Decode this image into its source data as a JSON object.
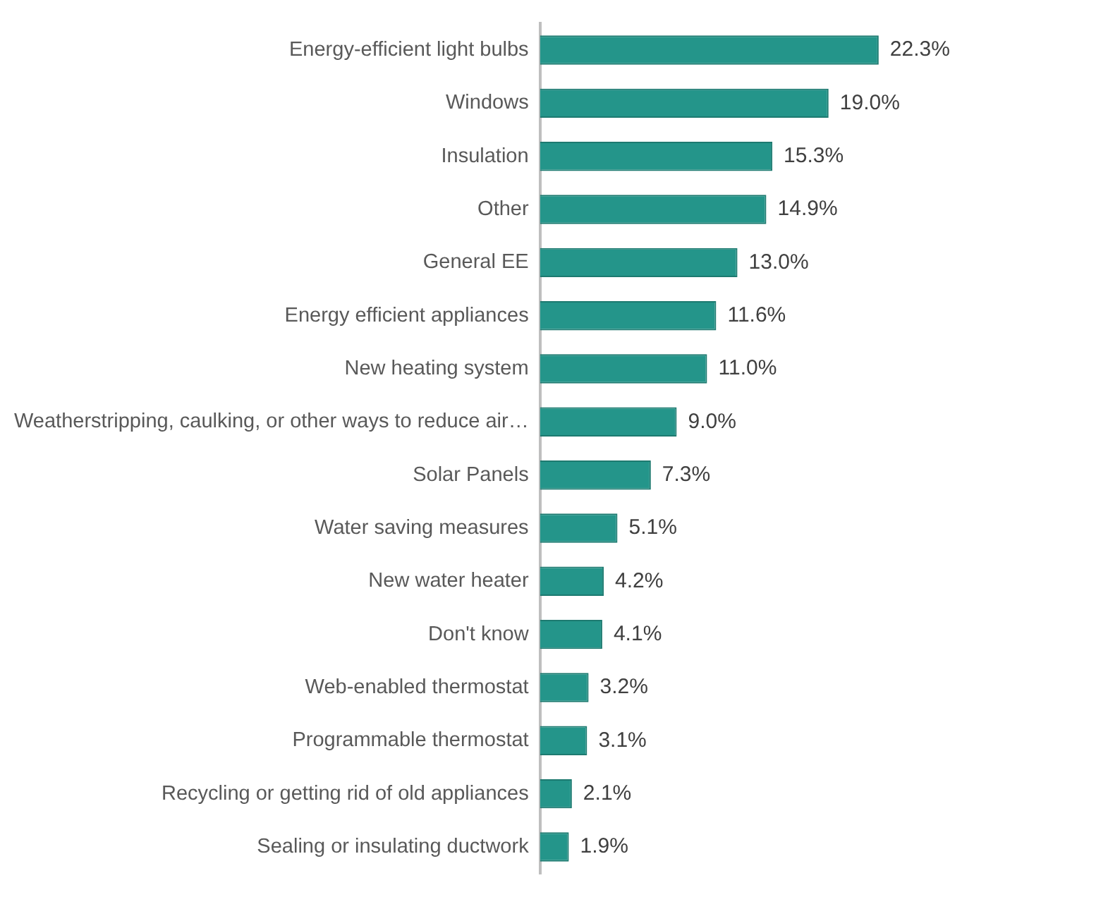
{
  "chart_data": {
    "type": "bar",
    "orientation": "horizontal",
    "categories": [
      "Energy-efficient light bulbs",
      "Windows",
      "Insulation",
      "Other",
      "General EE",
      "Energy efficient appliances",
      "New heating system",
      "Weatherstripping, caulking, or other ways to reduce air…",
      "Solar Panels",
      "Water saving measures",
      "New water heater",
      "Don't know",
      "Web-enabled thermostat",
      "Programmable thermostat",
      "Recycling or getting rid of old appliances",
      "Sealing or insulating ductwork"
    ],
    "values": [
      22.3,
      19.0,
      15.3,
      14.9,
      13.0,
      11.6,
      11.0,
      9.0,
      7.3,
      5.1,
      4.2,
      4.1,
      3.2,
      3.1,
      2.1,
      1.9
    ],
    "value_labels": [
      "22.3%",
      "19.0%",
      "15.3%",
      "14.9%",
      "13.0%",
      "11.6%",
      "11.0%",
      "9.0%",
      "7.3%",
      "5.1%",
      "4.2%",
      "4.1%",
      "3.2%",
      "3.1%",
      "2.1%",
      "1.9%"
    ],
    "color": "#24958a",
    "tick_labels": "y",
    "legend": false
  }
}
